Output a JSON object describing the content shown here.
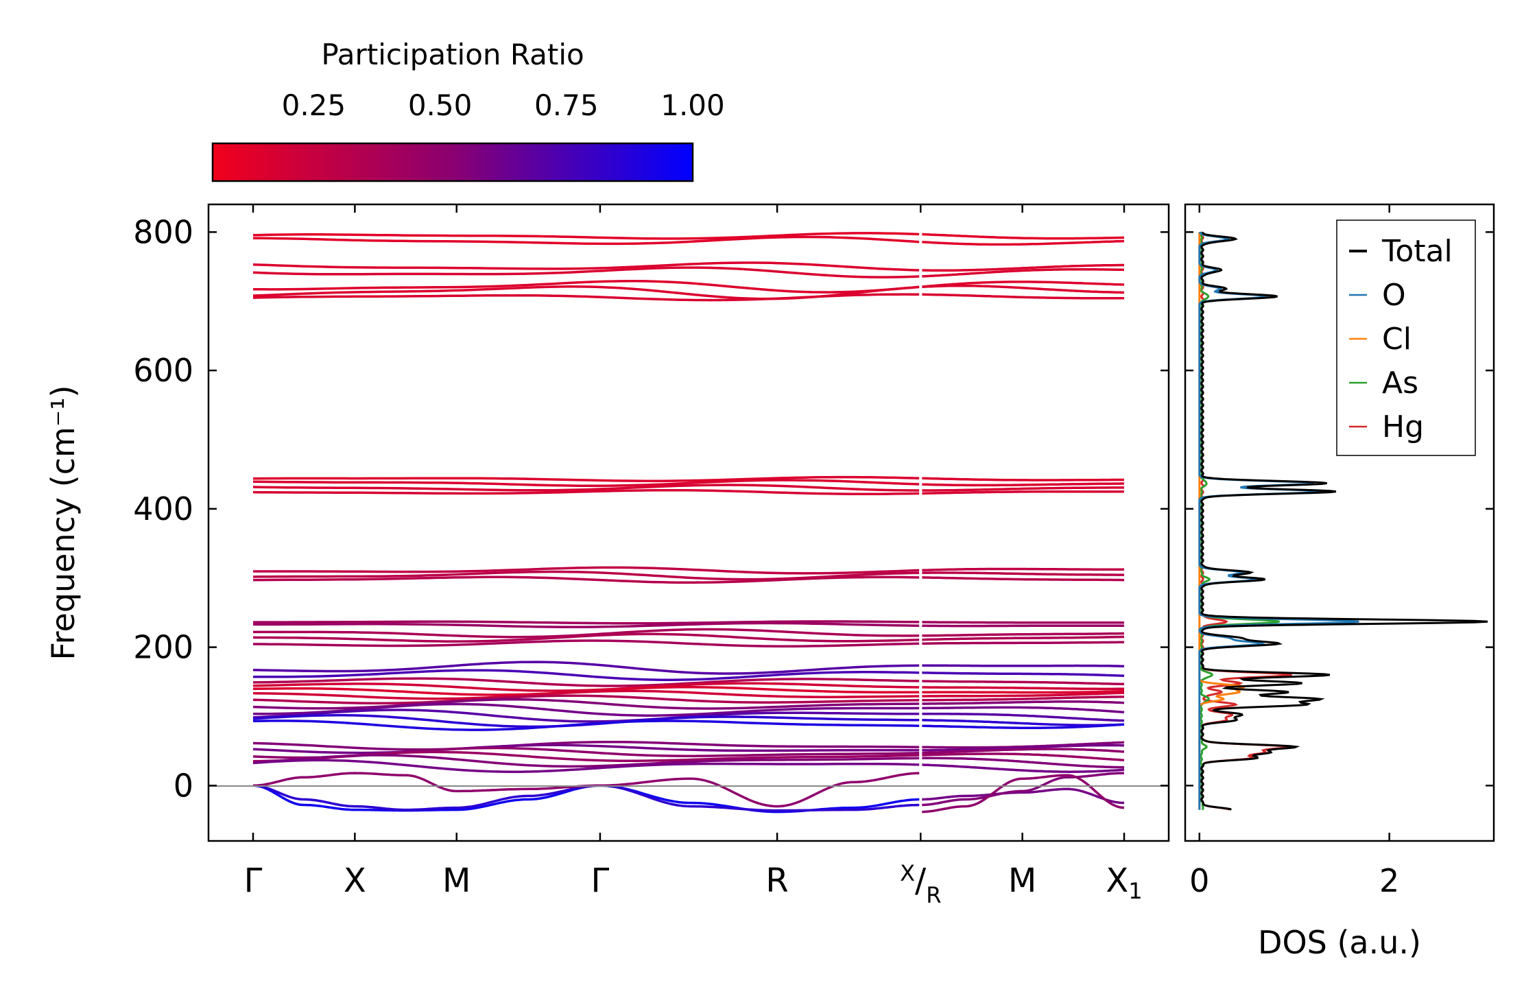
{
  "colorbar": {
    "title": "Participation Ratio",
    "ticks": [
      {
        "value": 0.25,
        "label": "0.25"
      },
      {
        "value": 0.5,
        "label": "0.50"
      },
      {
        "value": 0.75,
        "label": "0.75"
      },
      {
        "value": 1.0,
        "label": "1.00"
      }
    ],
    "range": [
      0.05,
      1.0
    ],
    "colors": {
      "low": "#ff0000",
      "high": "#0000ff"
    }
  },
  "chart_data": [
    {
      "type": "line",
      "title": "",
      "xlabel": "",
      "ylabel": "Frequency (cm⁻¹)",
      "ylim": [
        -80,
        840
      ],
      "yticks": [
        {
          "value": 0,
          "label": "0"
        },
        {
          "value": 200,
          "label": "200"
        },
        {
          "value": 400,
          "label": "400"
        },
        {
          "value": 600,
          "label": "600"
        },
        {
          "value": 800,
          "label": "800"
        }
      ],
      "kpath": [
        {
          "label": "Γ",
          "pos": 0.0
        },
        {
          "label": "X",
          "pos": 1.0
        },
        {
          "label": "M",
          "pos": 2.0
        },
        {
          "label": "Γ",
          "pos": 3.41
        },
        {
          "label": "R",
          "pos": 5.15
        },
        {
          "label": "X",
          "sub_label": "R",
          "pos": 6.56
        },
        {
          "label": "M",
          "pos": 7.56
        },
        {
          "label": "X",
          "subscript": "1",
          "pos": 8.56
        }
      ],
      "segment_break": 6.56,
      "zero_line": 0,
      "bands": [
        {
          "f": 794,
          "amp": 3,
          "pr": 0.12
        },
        {
          "f": 787,
          "amp": 4,
          "pr": 0.13
        },
        {
          "f": 750,
          "amp": 4,
          "pr": 0.15
        },
        {
          "f": 742,
          "amp": 5,
          "pr": 0.16
        },
        {
          "f": 722,
          "amp": 6,
          "pr": 0.14
        },
        {
          "f": 714,
          "amp": 7,
          "pr": 0.15
        },
        {
          "f": 706,
          "amp": 3,
          "pr": 0.16
        },
        {
          "f": 443,
          "amp": 2,
          "pr": 0.15
        },
        {
          "f": 437,
          "amp": 3,
          "pr": 0.16
        },
        {
          "f": 430,
          "amp": 3,
          "pr": 0.17
        },
        {
          "f": 424,
          "amp": 2,
          "pr": 0.18
        },
        {
          "f": 311,
          "amp": 3,
          "pr": 0.28
        },
        {
          "f": 304,
          "amp": 4,
          "pr": 0.3
        },
        {
          "f": 298,
          "amp": 3,
          "pr": 0.32
        },
        {
          "f": 236,
          "amp": 1,
          "pr": 0.42
        },
        {
          "f": 232,
          "amp": 2,
          "pr": 0.45
        },
        {
          "f": 220,
          "amp": 4,
          "pr": 0.38
        },
        {
          "f": 213,
          "amp": 4,
          "pr": 0.36
        },
        {
          "f": 205,
          "amp": 3,
          "pr": 0.4
        },
        {
          "f": 170,
          "amp": 6,
          "pr": 0.7
        },
        {
          "f": 160,
          "amp": 5,
          "pr": 0.75
        },
        {
          "f": 150,
          "amp": 4,
          "pr": 0.35
        },
        {
          "f": 143,
          "amp": 4,
          "pr": 0.2
        },
        {
          "f": 137,
          "amp": 4,
          "pr": 0.15
        },
        {
          "f": 131,
          "amp": 4,
          "pr": 0.2
        },
        {
          "f": 124,
          "amp": 4,
          "pr": 0.35
        },
        {
          "f": 117,
          "amp": 5,
          "pr": 0.55
        },
        {
          "f": 109,
          "amp": 6,
          "pr": 0.6
        },
        {
          "f": 101,
          "amp": 6,
          "pr": 0.7
        },
        {
          "f": 94,
          "amp": 6,
          "pr": 0.85
        },
        {
          "f": 88,
          "amp": 5,
          "pr": 0.9
        },
        {
          "f": 58,
          "amp": 4,
          "pr": 0.55
        },
        {
          "f": 53,
          "amp": 4,
          "pr": 0.6
        },
        {
          "f": 47,
          "amp": 5,
          "pr": 0.5
        },
        {
          "f": 41,
          "amp": 5,
          "pr": 0.45
        },
        {
          "f": 35,
          "amp": 6,
          "pr": 0.55
        },
        {
          "f": 28,
          "amp": 6,
          "pr": 0.6
        }
      ],
      "acoustic": [
        {
          "pr": 0.95,
          "x": [
            0,
            0.5,
            1.0,
            1.5,
            2.0,
            2.7,
            3.41,
            4.3,
            5.15,
            5.9,
            6.56
          ],
          "y": [
            0,
            -28,
            -35,
            -36,
            -35,
            -20,
            0,
            -25,
            -38,
            -32,
            -20
          ]
        },
        {
          "pr": 0.85,
          "x": [
            0,
            0.5,
            1.0,
            1.5,
            2.0,
            2.7,
            3.41,
            4.3,
            5.15,
            5.9,
            6.56
          ],
          "y": [
            0,
            -20,
            -30,
            -35,
            -32,
            -15,
            0,
            -30,
            -36,
            -35,
            -28
          ]
        },
        {
          "pr": 0.5,
          "x": [
            0,
            0.5,
            1.0,
            1.5,
            2.0,
            2.7,
            3.41,
            4.3,
            5.15,
            5.9,
            6.56
          ],
          "y": [
            0,
            12,
            18,
            15,
            -8,
            -5,
            0,
            10,
            -30,
            5,
            18
          ]
        },
        {
          "pr": 0.6,
          "x": [
            6.56,
            7.0,
            7.56,
            8.0,
            8.56
          ],
          "y": [
            -20,
            -15,
            -10,
            -5,
            -25
          ]
        },
        {
          "pr": 0.55,
          "x": [
            6.56,
            7.0,
            7.56,
            8.0,
            8.56
          ],
          "y": [
            -28,
            -20,
            -8,
            12,
            18
          ]
        },
        {
          "pr": 0.5,
          "x": [
            6.56,
            7.0,
            7.56,
            8.0,
            8.56
          ],
          "y": [
            -38,
            -30,
            10,
            15,
            -32
          ]
        }
      ]
    },
    {
      "type": "line",
      "title": "",
      "xlabel": "DOS (a.u.)",
      "ylabel": "",
      "xlim": [
        -0.15,
        3.1
      ],
      "ylim": [
        -80,
        840
      ],
      "xticks": [
        {
          "value": 0,
          "label": "0"
        },
        {
          "value": 2,
          "label": "2"
        }
      ],
      "legend_position": "top-right",
      "series": [
        {
          "name": "Total",
          "color": "#000000",
          "peaks": [
            [
              790,
              0.35
            ],
            [
              745,
              0.2
            ],
            [
              718,
              0.25
            ],
            [
              707,
              0.8
            ],
            [
              437,
              1.32
            ],
            [
              425,
              1.4
            ],
            [
              308,
              0.5
            ],
            [
              298,
              0.65
            ],
            [
              237,
              3.0
            ],
            [
              213,
              0.4
            ],
            [
              205,
              0.8
            ],
            [
              160,
              1.35
            ],
            [
              148,
              1.05
            ],
            [
              135,
              0.9
            ],
            [
              125,
              1.2
            ],
            [
              117,
              1.05
            ],
            [
              103,
              0.4
            ],
            [
              95,
              0.35
            ],
            [
              56,
              0.95
            ],
            [
              48,
              0.65
            ],
            [
              40,
              0.55
            ],
            [
              -35,
              0.3
            ]
          ],
          "floor": 0.03
        },
        {
          "name": "O",
          "color": "#1f77b4",
          "peaks": [
            [
              790,
              0.3
            ],
            [
              745,
              0.18
            ],
            [
              718,
              0.22
            ],
            [
              707,
              0.72
            ],
            [
              437,
              1.2
            ],
            [
              425,
              1.3
            ],
            [
              308,
              0.45
            ],
            [
              298,
              0.6
            ],
            [
              237,
              1.68
            ],
            [
              213,
              0.3
            ],
            [
              205,
              0.65
            ]
          ],
          "floor": 0.0
        },
        {
          "name": "Cl",
          "color": "#ff7f0e",
          "peaks": [
            [
              143,
              0.45
            ],
            [
              135,
              0.4
            ],
            [
              125,
              0.25
            ]
          ],
          "floor": 0.0
        },
        {
          "name": "As",
          "color": "#2ca02c",
          "peaks": [
            [
              707,
              0.08
            ],
            [
              437,
              0.06
            ],
            [
              298,
              0.08
            ],
            [
              237,
              0.82
            ],
            [
              160,
              0.12
            ],
            [
              125,
              0.08
            ],
            [
              56,
              0.05
            ],
            [
              -30,
              0.02
            ]
          ],
          "floor": 0.02
        },
        {
          "name": "Hg",
          "color": "#d62728",
          "peaks": [
            [
              237,
              0.25
            ],
            [
              160,
              0.95
            ],
            [
              148,
              0.4
            ],
            [
              135,
              0.2
            ],
            [
              117,
              0.35
            ],
            [
              103,
              0.3
            ],
            [
              95,
              0.25
            ],
            [
              56,
              0.88
            ],
            [
              48,
              0.6
            ],
            [
              40,
              0.5
            ],
            [
              -35,
              0.28
            ]
          ],
          "floor": 0.03
        }
      ]
    }
  ]
}
